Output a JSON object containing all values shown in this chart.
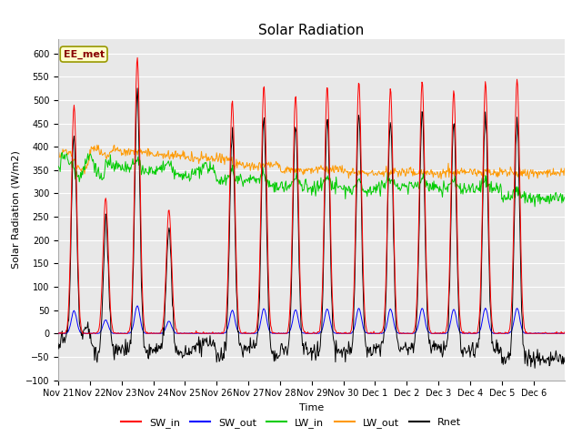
{
  "title": "Solar Radiation",
  "xlabel": "Time",
  "ylabel": "Solar Radiation (W/m2)",
  "annotation": "EE_met",
  "ylim": [
    -100,
    630
  ],
  "yticks": [
    -100,
    -50,
    0,
    50,
    100,
    150,
    200,
    250,
    300,
    350,
    400,
    450,
    500,
    550,
    600
  ],
  "x_labels": [
    "Nov 21",
    "Nov 22",
    "Nov 23",
    "Nov 24",
    "Nov 25",
    "Nov 26",
    "Nov 27",
    "Nov 28",
    "Nov 29",
    "Nov 30",
    "Dec 1",
    "Dec 2",
    "Dec 3",
    "Dec 4",
    "Dec 5",
    "Dec 6"
  ],
  "series_colors": {
    "SW_in": "#ff0000",
    "SW_out": "#0000ff",
    "LW_in": "#00cc00",
    "LW_out": "#ff9900",
    "Rnet": "#000000"
  },
  "fig_bg_color": "#ffffff",
  "plot_bg_color": "#e8e8e8",
  "grid_color": "#ffffff",
  "title_fontsize": 11,
  "label_fontsize": 8,
  "tick_fontsize": 7,
  "annotation_facecolor": "#ffffcc",
  "annotation_edgecolor": "#999900",
  "annotation_textcolor": "#880000"
}
